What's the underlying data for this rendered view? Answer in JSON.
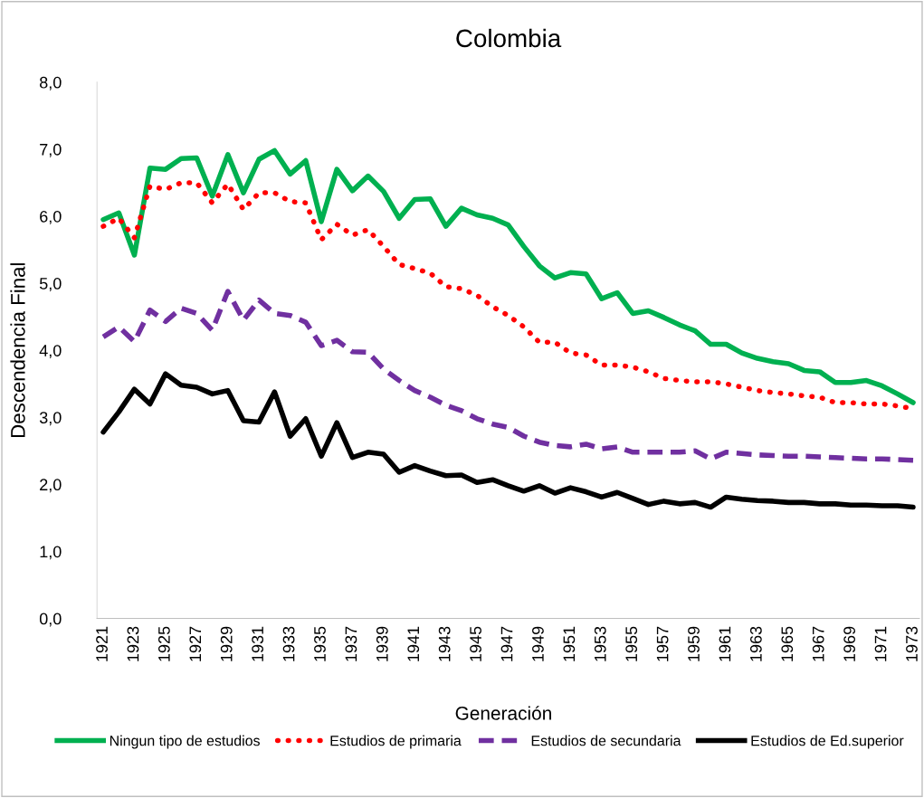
{
  "chart_data": {
    "type": "line",
    "title": "Colombia",
    "xlabel": "Generación",
    "ylabel": "Descendencia Final",
    "categories": [
      "1921",
      null,
      "1923",
      null,
      "1925",
      null,
      "1927",
      null,
      "1929",
      null,
      "1931",
      null,
      "1933",
      null,
      "1935",
      null,
      "1937",
      null,
      "1939",
      null,
      "1941",
      null,
      "1943",
      null,
      "1945",
      null,
      "1947",
      null,
      "1949",
      null,
      "1951",
      null,
      "1953",
      null,
      "1955",
      null,
      "1957",
      null,
      "1959",
      null,
      "1961",
      null,
      "1963",
      null,
      "1965",
      null,
      "1967",
      null,
      "1969",
      null,
      "1971",
      null,
      "1973"
    ],
    "ylim": [
      0,
      8
    ],
    "yticks": [
      {
        "value": 0,
        "label": "0,0"
      },
      {
        "value": 1,
        "label": "1,0"
      },
      {
        "value": 2,
        "label": "2,0"
      },
      {
        "value": 3,
        "label": "3,0"
      },
      {
        "value": 4,
        "label": "4,0"
      },
      {
        "value": 5,
        "label": "5,0"
      },
      {
        "value": 6,
        "label": "6,0"
      },
      {
        "value": 7,
        "label": "7,0"
      },
      {
        "value": 8,
        "label": "8,0"
      }
    ],
    "grid": false,
    "legend": "bottom",
    "series": [
      {
        "name": "Ningun tipo de estudios",
        "color": "#00b050",
        "line_style": "solid",
        "values": [
          5.95,
          6.05,
          5.42,
          6.72,
          6.7,
          6.86,
          6.87,
          6.3,
          6.92,
          6.35,
          6.85,
          6.98,
          6.63,
          6.83,
          5.92,
          6.7,
          6.38,
          6.6,
          6.37,
          5.97,
          6.25,
          6.26,
          5.85,
          6.12,
          6.02,
          5.97,
          5.87,
          5.55,
          5.26,
          5.08,
          5.16,
          5.14,
          4.77,
          4.86,
          4.55,
          4.59,
          4.49,
          4.38,
          4.29,
          4.09,
          4.09,
          3.96,
          3.88,
          3.83,
          3.8,
          3.7,
          3.68,
          3.52,
          3.52,
          3.55,
          3.47,
          3.35,
          3.22
        ]
      },
      {
        "name": "Estudios de primaria",
        "color": "#ff0000",
        "line_style": "dotted",
        "values": [
          5.85,
          5.97,
          5.68,
          6.45,
          6.4,
          6.5,
          6.5,
          6.2,
          6.48,
          6.1,
          6.35,
          6.35,
          6.22,
          6.2,
          5.65,
          5.88,
          5.72,
          5.8,
          5.55,
          5.28,
          5.22,
          5.15,
          4.95,
          4.92,
          4.82,
          4.65,
          4.52,
          4.35,
          4.12,
          4.12,
          3.96,
          3.93,
          3.78,
          3.78,
          3.75,
          3.68,
          3.58,
          3.55,
          3.53,
          3.53,
          3.5,
          3.45,
          3.4,
          3.37,
          3.35,
          3.32,
          3.3,
          3.22,
          3.22,
          3.2,
          3.2,
          3.17,
          3.13
        ]
      },
      {
        "name": "Estudios de secundaria",
        "color": "#7030a0",
        "line_style": "dashed",
        "values": [
          4.2,
          4.35,
          4.13,
          4.6,
          4.43,
          4.63,
          4.55,
          4.3,
          4.88,
          4.45,
          4.75,
          4.55,
          4.52,
          4.42,
          4.07,
          4.15,
          3.98,
          3.97,
          3.72,
          3.55,
          3.4,
          3.3,
          3.18,
          3.1,
          2.98,
          2.9,
          2.85,
          2.72,
          2.63,
          2.58,
          2.56,
          2.6,
          2.53,
          2.56,
          2.48,
          2.48,
          2.48,
          2.48,
          2.5,
          2.38,
          2.48,
          2.46,
          2.44,
          2.43,
          2.42,
          2.42,
          2.41,
          2.4,
          2.39,
          2.38,
          2.38,
          2.37,
          2.36
        ]
      },
      {
        "name": "Estudios de Ed.superior",
        "color": "#000000",
        "line_style": "solid",
        "values": [
          2.78,
          3.08,
          3.42,
          3.2,
          3.65,
          3.48,
          3.45,
          3.35,
          3.4,
          2.95,
          2.93,
          3.38,
          2.72,
          2.98,
          2.42,
          2.92,
          2.4,
          2.48,
          2.45,
          2.18,
          2.28,
          2.2,
          2.13,
          2.14,
          2.03,
          2.07,
          1.98,
          1.9,
          1.98,
          1.87,
          1.95,
          1.89,
          1.81,
          1.88,
          1.79,
          1.7,
          1.75,
          1.71,
          1.73,
          1.66,
          1.81,
          1.78,
          1.76,
          1.75,
          1.73,
          1.73,
          1.71,
          1.71,
          1.69,
          1.69,
          1.68,
          1.68,
          1.66
        ]
      }
    ]
  }
}
